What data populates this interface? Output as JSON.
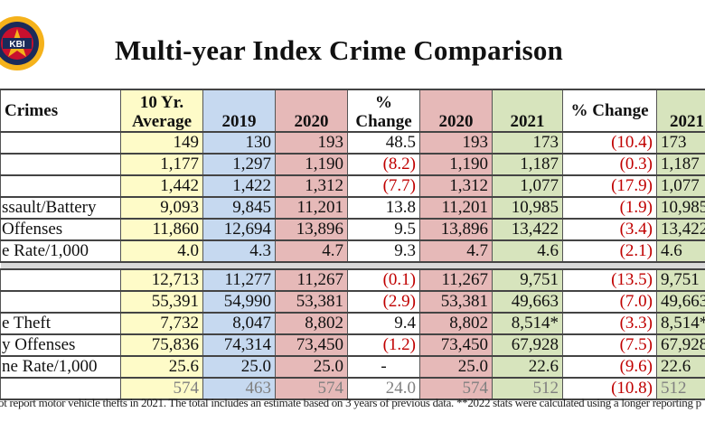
{
  "title": "Multi-year Index Crime Comparison",
  "logo": {
    "text": "KBI",
    "ring_text": "KANSAS BUREAU OF INVESTIGATION",
    "colors": [
      "#f5b21b",
      "#c8102e",
      "#1a2a5a"
    ]
  },
  "colors": {
    "ten_year": "#fefbc8",
    "y2019": "#c6d9f0",
    "y2020": "#e6b9b8",
    "y2021": "#d7e4bd",
    "negative": "#c00000"
  },
  "headers": [
    "Crimes",
    "10 Yr. Average",
    "2019",
    "2020",
    "% Change",
    "2020",
    "2021",
    "% Change",
    "2021"
  ],
  "section1": [
    {
      "label": "",
      "vals": [
        "149",
        "130",
        "193",
        "48.5",
        "193",
        "173",
        "(10.4)",
        "173"
      ]
    },
    {
      "label": "",
      "vals": [
        "1,177",
        "1,297",
        "1,190",
        "(8.2)",
        "1,190",
        "1,187",
        "(0.3)",
        "1,187"
      ]
    },
    {
      "label": "",
      "vals": [
        "1,442",
        "1,422",
        "1,312",
        "(7.7)",
        "1,312",
        "1,077",
        "(17.9)",
        "1,077"
      ]
    },
    {
      "label": "ssault/Battery",
      "vals": [
        "9,093",
        "9,845",
        "11,201",
        "13.8",
        "11,201",
        "10,985",
        "(1.9)",
        "10,985"
      ]
    },
    {
      "label": "Offenses",
      "vals": [
        "11,860",
        "12,694",
        "13,896",
        "9.5",
        "13,896",
        "13,422",
        "(3.4)",
        "13,422"
      ]
    },
    {
      "label": "e Rate/1,000",
      "vals": [
        "4.0",
        "4.3",
        "4.7",
        "9.3",
        "4.7",
        "4.6",
        "(2.1)",
        "4.6"
      ]
    }
  ],
  "section2": [
    {
      "label": "",
      "vals": [
        "12,713",
        "11,277",
        "11,267",
        "(0.1)",
        "11,267",
        "9,751",
        "(13.5)",
        "9,751"
      ]
    },
    {
      "label": "",
      "vals": [
        "55,391",
        "54,990",
        "53,381",
        "(2.9)",
        "53,381",
        "49,663",
        "(7.0)",
        "49,663"
      ]
    },
    {
      "label": "e Theft",
      "vals": [
        "7,732",
        "8,047",
        "8,802",
        "9.4",
        "8,802",
        "8,514*",
        "(3.3)",
        "8,514*"
      ]
    },
    {
      "label": "y Offenses",
      "vals": [
        "75,836",
        "74,314",
        "73,450",
        "(1.2)",
        "73,450",
        "67,928",
        "(7.5)",
        "67,928"
      ]
    },
    {
      "label": "ne Rate/1,000",
      "vals": [
        "25.6",
        "25.0",
        "25.0",
        "-",
        "25.0",
        "22.6",
        "(9.6)",
        "22.6"
      ]
    },
    {
      "label": "",
      "vals": [
        "574",
        "463",
        "574",
        "24.0",
        "574",
        "512",
        "(10.8)",
        "512"
      ]
    }
  ],
  "footnote": "ot report motor vehicle thefts in 2021. The total includes an estimate  based on 3 years of previous data. **2022 stats were calculated using a longer reporting p"
}
